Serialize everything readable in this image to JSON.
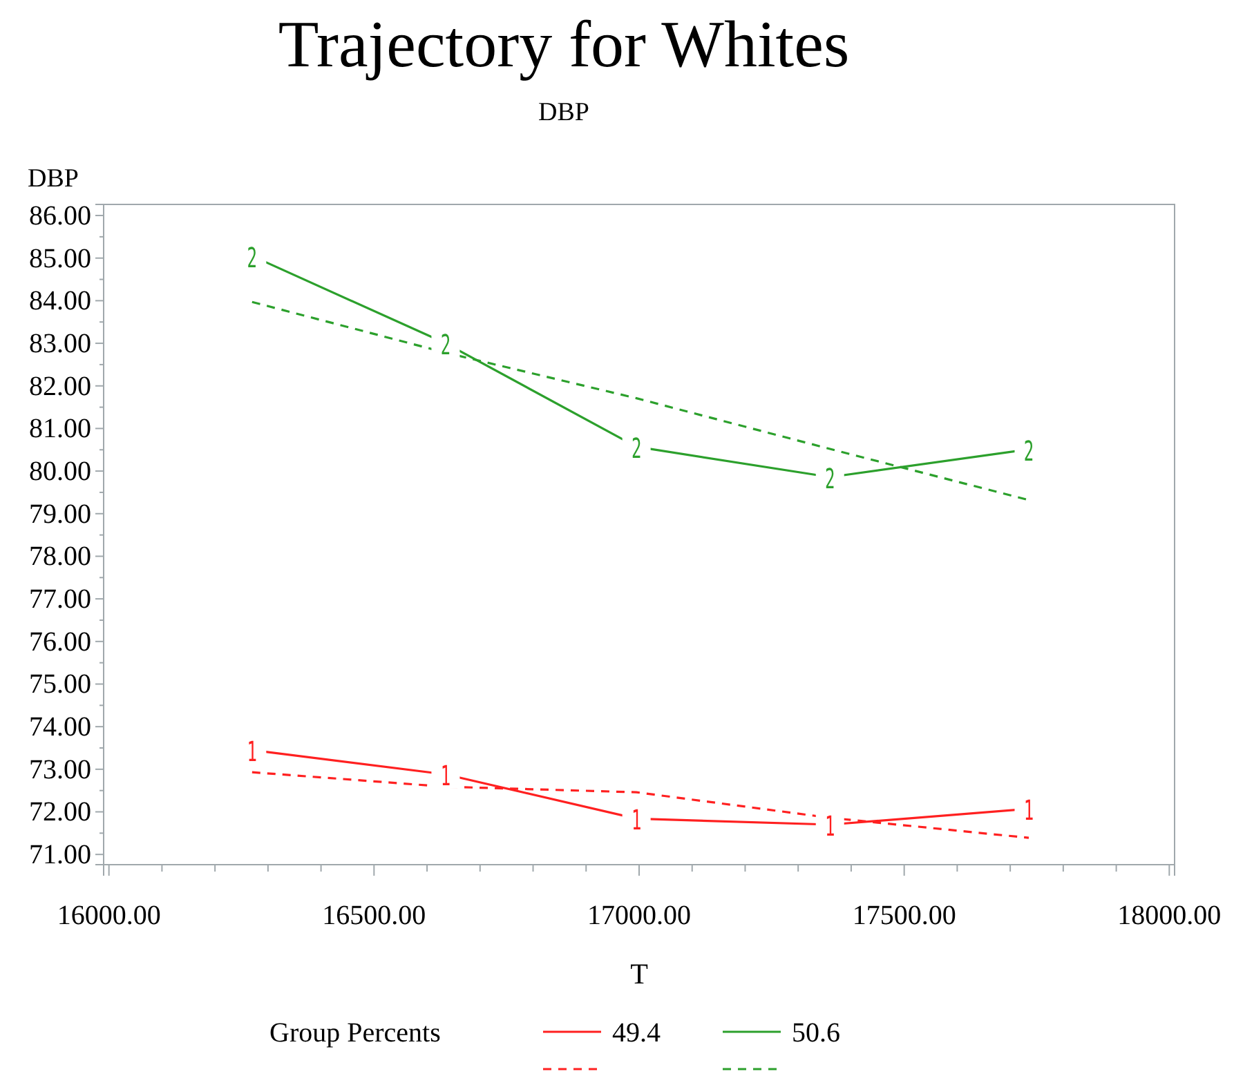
{
  "chart_data": {
    "type": "line",
    "title": "Trajectory for Whites",
    "subtitle": "DBP",
    "xlabel": "T",
    "ylabel": "DBP",
    "legend_title": "Group Percents",
    "legend": "bottom",
    "grid": false,
    "x": [
      16270,
      16635,
      16995,
      17360,
      17735
    ],
    "series": [
      {
        "name": "49.4",
        "color": "#ff2020",
        "line_style": "solid",
        "marker": "square",
        "values": [
          73.45,
          72.88,
          71.84,
          71.7,
          72.07
        ]
      },
      {
        "color": "#ff2020",
        "line_style": "dashed",
        "values": [
          72.93,
          72.59,
          72.46,
          71.86,
          71.39
        ]
      },
      {
        "name": "50.6",
        "color": "#2ca02c",
        "line_style": "solid",
        "marker": "square",
        "values": [
          85.05,
          83.0,
          80.57,
          79.86,
          80.51
        ]
      },
      {
        "color": "#2ca02c",
        "line_style": "dashed",
        "values": [
          83.97,
          82.78,
          81.71,
          80.52,
          79.32
        ]
      }
    ],
    "annotations": [
      {
        "text": "1",
        "x": 16270,
        "y": 73.45
      },
      {
        "text": "1",
        "x": 16635,
        "y": 72.88
      },
      {
        "text": "1",
        "x": 16995,
        "y": 71.84
      },
      {
        "text": "1",
        "x": 17360,
        "y": 71.7
      },
      {
        "text": "1",
        "x": 17735,
        "y": 72.07
      },
      {
        "text": "2",
        "x": 16270,
        "y": 85.05
      },
      {
        "text": "2",
        "x": 16635,
        "y": 83.0
      },
      {
        "text": "2",
        "x": 16995,
        "y": 80.57
      },
      {
        "text": "2",
        "x": 17360,
        "y": 79.86
      },
      {
        "text": "2",
        "x": 17735,
        "y": 80.51
      }
    ],
    "xlim": [
      15990,
      18010
    ],
    "xticks": [
      {
        "value": 16000,
        "label": "16000.00"
      },
      {
        "value": 16500,
        "label": "16500.00"
      },
      {
        "value": 17000,
        "label": "17000.00"
      },
      {
        "value": 17500,
        "label": "17500.00"
      },
      {
        "value": 18000,
        "label": "18000.00"
      }
    ],
    "ylim": [
      70.76,
      86.26
    ],
    "yticks": [
      {
        "value": 71,
        "label": "71.00"
      },
      {
        "value": 72,
        "label": "72.00"
      },
      {
        "value": 73,
        "label": "73.00"
      },
      {
        "value": 74,
        "label": "74.00"
      },
      {
        "value": 75,
        "label": "75.00"
      },
      {
        "value": 76,
        "label": "76.00"
      },
      {
        "value": 77,
        "label": "77.00"
      },
      {
        "value": 78,
        "label": "78.00"
      },
      {
        "value": 79,
        "label": "79.00"
      },
      {
        "value": 80,
        "label": "80.00"
      },
      {
        "value": 81,
        "label": "81.00"
      },
      {
        "value": 82,
        "label": "82.00"
      },
      {
        "value": 83,
        "label": "83.00"
      },
      {
        "value": 84,
        "label": "84.00"
      },
      {
        "value": 85,
        "label": "85.00"
      },
      {
        "value": 86,
        "label": "86.00"
      }
    ]
  }
}
